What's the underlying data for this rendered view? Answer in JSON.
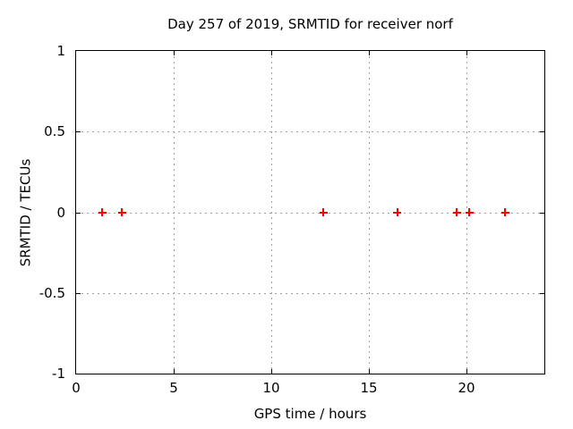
{
  "chart_data": {
    "type": "scatter",
    "title": "Day 257 of 2019, SRMTID for receiver norf",
    "xlabel": "GPS time / hours",
    "ylabel": "SRMTID / TECUs",
    "xlim": [
      0,
      24
    ],
    "ylim": [
      -1,
      1
    ],
    "x_ticks": [
      0,
      5,
      10,
      15,
      20
    ],
    "y_ticks": [
      1,
      0.5,
      0,
      -0.5,
      -1
    ],
    "grid": true,
    "legend": "none",
    "series": [
      {
        "name": "SRMTID",
        "marker": "plus",
        "color": "#ff0000",
        "points": [
          [
            1.34,
            0
          ],
          [
            2.35,
            0
          ],
          [
            12.68,
            0
          ],
          [
            16.47,
            0
          ],
          [
            19.51,
            0
          ],
          [
            20.16,
            0
          ],
          [
            21.99,
            0
          ]
        ]
      }
    ]
  },
  "colors": {
    "background": "#ffffff",
    "text": "#000000",
    "axis_border": "#000000",
    "grid": "#a0a0a0",
    "marker": "#ff0000"
  }
}
